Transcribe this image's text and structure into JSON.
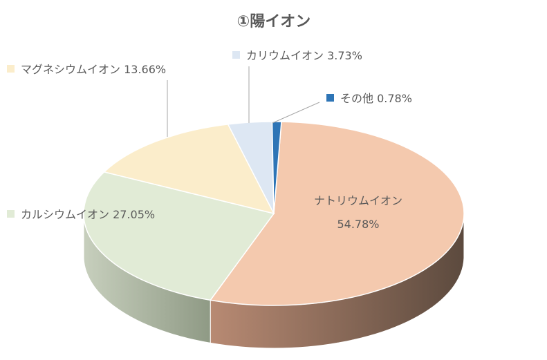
{
  "chart_data": {
    "type": "pie",
    "style": "3d",
    "title": "①陽イオン",
    "slices": [
      {
        "name": "ナトリウムイオン",
        "value": 54.78,
        "label_value": "54.78%",
        "color": "#F4C9AE",
        "side_color": "#b07860"
      },
      {
        "name": "カルシウムイオン",
        "value": 27.05,
        "label_value": "27.05%",
        "color": "#E1EBD6",
        "side_color": "#aab4a0"
      },
      {
        "name": "マグネシウムイオン",
        "value": 13.66,
        "label_value": "13.66%",
        "color": "#FBEDCB",
        "side_color": "#c9b98f"
      },
      {
        "name": "カリウムイオン",
        "value": 3.73,
        "label_value": "3.73%",
        "color": "#DDE7F3",
        "side_color": "#9fb0c4"
      },
      {
        "name": "その他",
        "value": 0.78,
        "label_value": "0.78%",
        "color": "#2E75B6",
        "side_color": "#1f4f7d"
      }
    ],
    "legend": "labels-with-markers"
  }
}
